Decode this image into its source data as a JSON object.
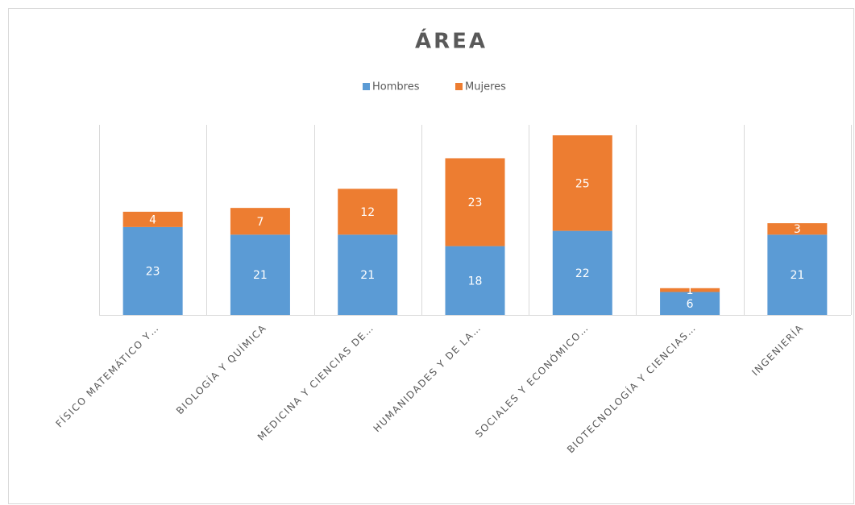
{
  "chart_data": {
    "type": "bar",
    "stacked": true,
    "title": "ÁREA",
    "categories": [
      "FÍSICO MATEMÁTICO Y…",
      "BIOLOGÍA Y QUÍMICA",
      "MEDICINA Y CIENCIAS DE…",
      "HUMANIDADES Y DE LA…",
      "SOCIALES Y ECONÓMICO…",
      "BIOTECNOLOGÍA Y CIENCIAS…",
      "INGENIERÍA"
    ],
    "series": [
      {
        "name": "Hombres",
        "color": "#5b9bd5",
        "values": [
          23,
          21,
          21,
          18,
          22,
          6,
          21
        ]
      },
      {
        "name": "Mujeres",
        "color": "#ed7d31",
        "values": [
          4,
          7,
          12,
          23,
          25,
          1,
          3
        ]
      }
    ]
  }
}
